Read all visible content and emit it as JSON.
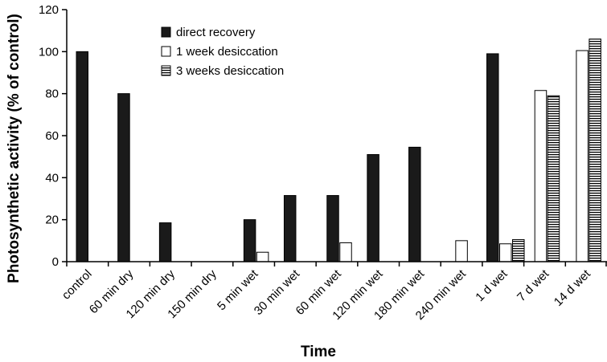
{
  "chart_data": {
    "type": "bar",
    "title": "",
    "xlabel": "Time",
    "ylabel": "Photosynthetic activity (% of control)",
    "ylim": [
      0,
      120
    ],
    "yticks": [
      0,
      20,
      40,
      60,
      80,
      100,
      120
    ],
    "grid": false,
    "legend_position": "top-center",
    "categories": [
      "control",
      "60 min dry",
      "120 min dry",
      "150 min dry",
      "5 min wet",
      "30 min wet",
      "60 min wet",
      "120 min wet",
      "180 min wet",
      "240 min wet",
      "1 d wet",
      "7 d wet",
      "14 d wet"
    ],
    "series": [
      {
        "name": "direct recovery",
        "fill": "solid-black",
        "values": [
          100,
          80,
          18.5,
          null,
          20,
          31.5,
          31.5,
          51,
          54.5,
          null,
          99,
          null,
          null
        ]
      },
      {
        "name": "1 week desiccation",
        "fill": "white",
        "values": [
          null,
          null,
          null,
          null,
          4.5,
          null,
          9,
          null,
          null,
          10,
          8.5,
          81.5,
          100.5
        ]
      },
      {
        "name": "3 weeks desiccation",
        "fill": "horizontal-hatch",
        "values": [
          null,
          null,
          null,
          null,
          null,
          null,
          null,
          null,
          null,
          null,
          10.5,
          79,
          106
        ]
      }
    ]
  }
}
